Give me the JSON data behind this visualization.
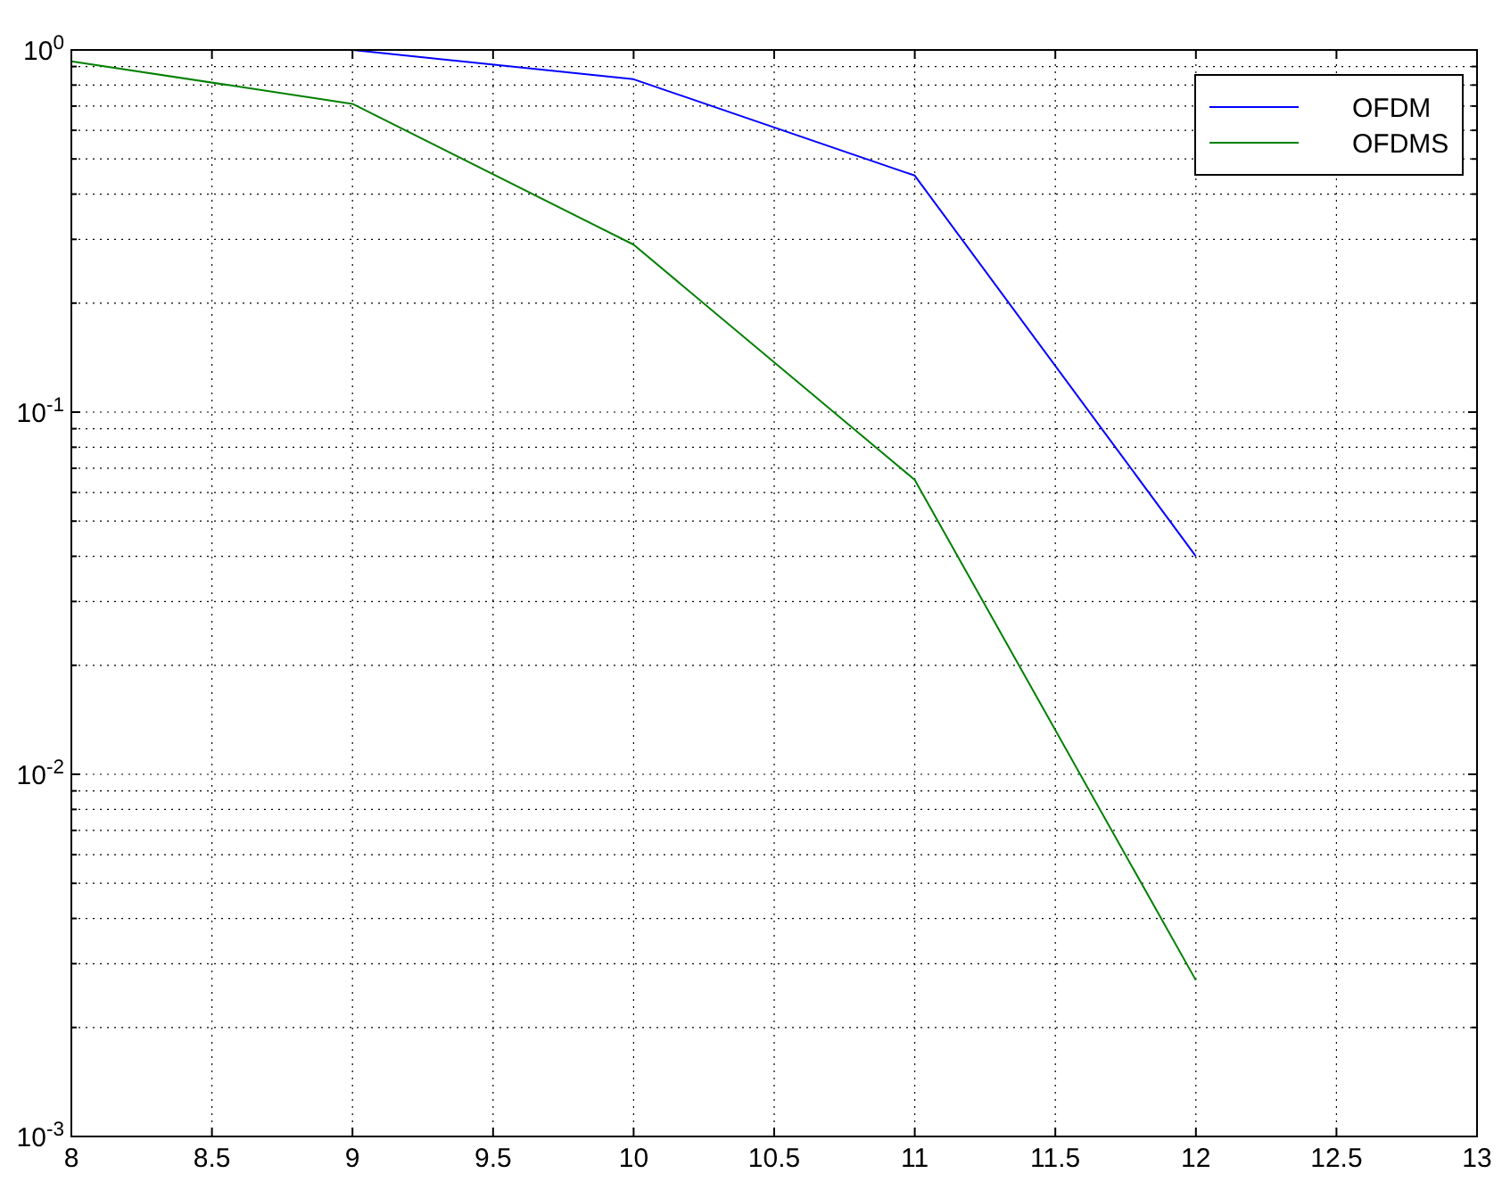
{
  "chart_data": {
    "type": "line",
    "x": [
      8,
      9,
      10,
      11,
      12
    ],
    "series": [
      {
        "name": "OFDM",
        "color": "#0000ff",
        "values": [
          null,
          1,
          0.83,
          0.45,
          0.04
        ]
      },
      {
        "name": "OFDMS",
        "color": "#008000",
        "values": [
          0.93,
          0.71,
          0.29,
          0.065,
          0.0027
        ]
      }
    ],
    "xlim": [
      8,
      13
    ],
    "xticks": [
      8,
      8.5,
      9,
      9.5,
      10,
      10.5,
      11,
      11.5,
      12,
      12.5,
      13
    ],
    "ylim": [
      0.001,
      1
    ],
    "log": true,
    "yticks": [
      {
        "value": 0.001,
        "label": "10$^{-3}$"
      },
      {
        "value": 0.002,
        "label": null
      },
      {
        "value": 0.003,
        "label": null
      },
      {
        "value": 0.004,
        "label": null
      },
      {
        "value": 0.005,
        "label": null
      },
      {
        "value": 0.006,
        "label": null
      },
      {
        "value": 0.007,
        "label": null
      },
      {
        "value": 0.008,
        "label": null
      },
      {
        "value": 0.009,
        "label": null
      },
      {
        "value": 0.01,
        "label": "10$^{-2}$"
      },
      {
        "value": 0.02,
        "label": null
      },
      {
        "value": 0.03,
        "label": null
      },
      {
        "value": 0.04,
        "label": null
      },
      {
        "value": 0.05,
        "label": null
      },
      {
        "value": 0.06,
        "label": null
      },
      {
        "value": 0.07,
        "label": null
      },
      {
        "value": 0.08,
        "label": null
      },
      {
        "value": 0.09,
        "label": null
      },
      {
        "value": 0.1,
        "label": "10$^{-1}$"
      },
      {
        "value": 0.2,
        "label": null
      },
      {
        "value": 0.3,
        "label": null
      },
      {
        "value": 0.4,
        "label": null
      },
      {
        "value": 0.5,
        "label": null
      },
      {
        "value": 0.6,
        "label": null
      },
      {
        "value": 0.7,
        "label": null
      },
      {
        "value": 0.8,
        "label": null
      },
      {
        "value": 0.9,
        "label": null
      },
      {
        "value": 1,
        "label": "10$^{0}$"
      }
    ],
    "grid": true,
    "legend": "top right",
    "line_style": "solid",
    "marker": "none"
  }
}
